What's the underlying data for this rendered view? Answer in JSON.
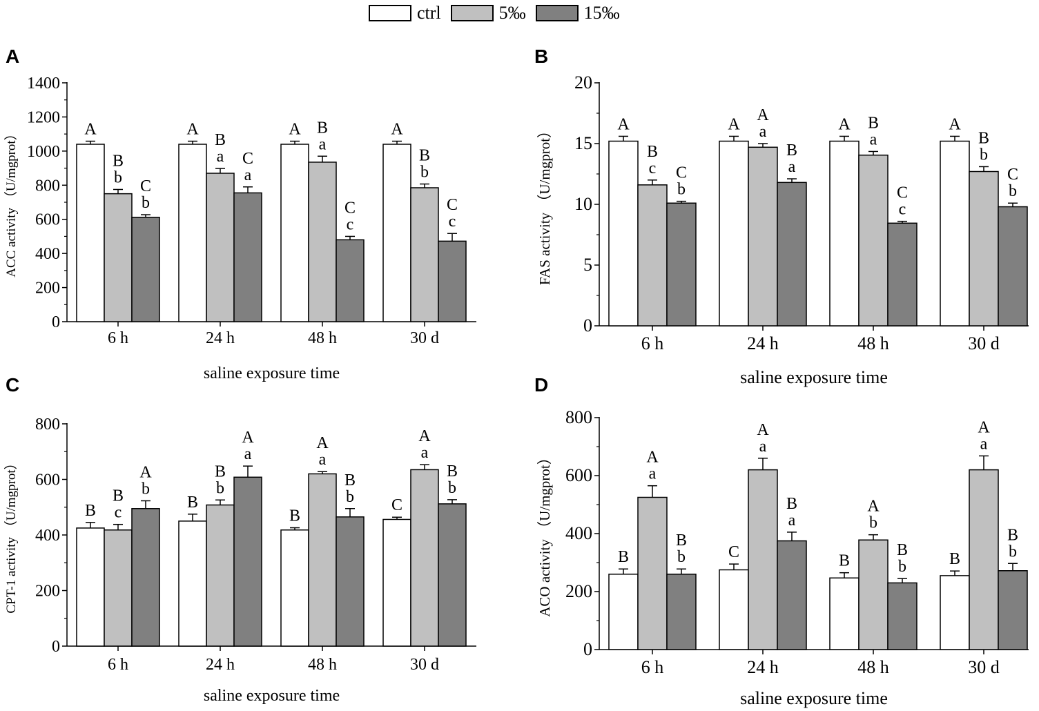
{
  "legend": [
    {
      "label": "ctrl",
      "color": "#ffffff"
    },
    {
      "label": "5‰",
      "color": "#c0c0c0"
    },
    {
      "label": "15‰",
      "color": "#808080"
    }
  ],
  "chart_data": [
    {
      "panel": "A",
      "type": "bar",
      "categories": [
        "6 h",
        "24 h",
        "48 h",
        "30 d"
      ],
      "xlabel": "saline exposure time",
      "ylabel": "ACC activity （U/mgprot）",
      "ylim": [
        0,
        1400
      ],
      "yticks": [
        "0",
        "200",
        "400",
        "600",
        "800",
        "1000",
        "1200",
        "1400"
      ],
      "series": [
        {
          "name": "ctrl",
          "values": [
            1040,
            1040,
            1040,
            1040
          ],
          "errors": [
            18,
            18,
            18,
            18
          ],
          "labels": [
            [
              "A"
            ],
            [
              "A"
            ],
            [
              "A"
            ],
            [
              "A"
            ]
          ]
        },
        {
          "name": "5‰",
          "values": [
            750,
            870,
            935,
            785
          ],
          "errors": [
            25,
            28,
            35,
            22
          ],
          "labels": [
            [
              "B",
              "b"
            ],
            [
              "B",
              "a"
            ],
            [
              "B",
              "a"
            ],
            [
              "B",
              "b"
            ]
          ]
        },
        {
          "name": "15‰",
          "values": [
            612,
            755,
            480,
            472
          ],
          "errors": [
            15,
            35,
            20,
            45
          ],
          "labels": [
            [
              "C",
              "b"
            ],
            [
              "C",
              "a"
            ],
            [
              "C",
              "c"
            ],
            [
              "C",
              "c"
            ]
          ]
        }
      ]
    },
    {
      "panel": "B",
      "type": "bar",
      "categories": [
        "6 h",
        "24 h",
        "48 h",
        "30 d"
      ],
      "xlabel": "saline exposure time",
      "ylabel": "FAS activity （U/mgprot）",
      "ylim": [
        0,
        20
      ],
      "yticks": [
        "0",
        "5",
        "10",
        "15",
        "20"
      ],
      "series": [
        {
          "name": "ctrl",
          "values": [
            15.2,
            15.2,
            15.2,
            15.2
          ],
          "errors": [
            0.4,
            0.4,
            0.4,
            0.4
          ],
          "labels": [
            [
              "A"
            ],
            [
              "A"
            ],
            [
              "A"
            ],
            [
              "A"
            ]
          ]
        },
        {
          "name": "5‰",
          "values": [
            11.6,
            14.7,
            14.05,
            12.7
          ],
          "errors": [
            0.4,
            0.3,
            0.3,
            0.4
          ],
          "labels": [
            [
              "B",
              "c"
            ],
            [
              "A",
              "a"
            ],
            [
              "B",
              "a"
            ],
            [
              "B",
              "b"
            ]
          ]
        },
        {
          "name": "15‰",
          "values": [
            10.1,
            11.8,
            8.45,
            9.8
          ],
          "errors": [
            0.15,
            0.3,
            0.15,
            0.3
          ],
          "labels": [
            [
              "C",
              "b"
            ],
            [
              "B",
              "a"
            ],
            [
              "C",
              "c"
            ],
            [
              "C",
              "b"
            ]
          ]
        }
      ]
    },
    {
      "panel": "C",
      "type": "bar",
      "categories": [
        "6 h",
        "24 h",
        "48 h",
        "30 d"
      ],
      "xlabel": "saline exposure time",
      "ylabel": "CPT-1 activity （U/mgprot）",
      "ylim": [
        0,
        800
      ],
      "yticks": [
        "0",
        "200",
        "400",
        "600",
        "800"
      ],
      "series": [
        {
          "name": "ctrl",
          "values": [
            425,
            450,
            418,
            456
          ],
          "errors": [
            20,
            25,
            8,
            8
          ],
          "labels": [
            [
              "B"
            ],
            [
              "B"
            ],
            [
              "B"
            ],
            [
              "C"
            ]
          ]
        },
        {
          "name": "5‰",
          "values": [
            418,
            508,
            620,
            635
          ],
          "errors": [
            20,
            18,
            8,
            18
          ],
          "labels": [
            [
              "B",
              "c"
            ],
            [
              "B",
              "b"
            ],
            [
              "A",
              "a"
            ],
            [
              "A",
              "a"
            ]
          ]
        },
        {
          "name": "15‰",
          "values": [
            495,
            608,
            465,
            512
          ],
          "errors": [
            28,
            40,
            30,
            15
          ],
          "labels": [
            [
              "A",
              "b"
            ],
            [
              "A",
              "a"
            ],
            [
              "B",
              "b"
            ],
            [
              "B",
              "b"
            ]
          ]
        }
      ]
    },
    {
      "panel": "D",
      "type": "bar",
      "categories": [
        "6 h",
        "24 h",
        "48 h",
        "30 d"
      ],
      "xlabel": "saline exposure time",
      "ylabel": "ACO activity （U/mgprot）",
      "ylim": [
        0,
        800
      ],
      "yticks": [
        "0",
        "200",
        "400",
        "600",
        "800"
      ],
      "series": [
        {
          "name": "ctrl",
          "values": [
            260,
            275,
            247,
            255
          ],
          "errors": [
            18,
            20,
            18,
            16
          ],
          "labels": [
            [
              "B"
            ],
            [
              "C"
            ],
            [
              "B"
            ],
            [
              "B"
            ]
          ]
        },
        {
          "name": "5‰",
          "values": [
            525,
            620,
            378,
            620
          ],
          "errors": [
            40,
            40,
            18,
            48
          ],
          "labels": [
            [
              "A",
              "a"
            ],
            [
              "A",
              "a"
            ],
            [
              "A",
              "b"
            ],
            [
              "A",
              "a"
            ]
          ]
        },
        {
          "name": "15‰",
          "values": [
            260,
            375,
            230,
            272
          ],
          "errors": [
            18,
            30,
            15,
            25
          ],
          "labels": [
            [
              "B",
              "b"
            ],
            [
              "B",
              "a"
            ],
            [
              "B",
              "b"
            ],
            [
              "B",
              "b"
            ]
          ]
        }
      ]
    }
  ]
}
